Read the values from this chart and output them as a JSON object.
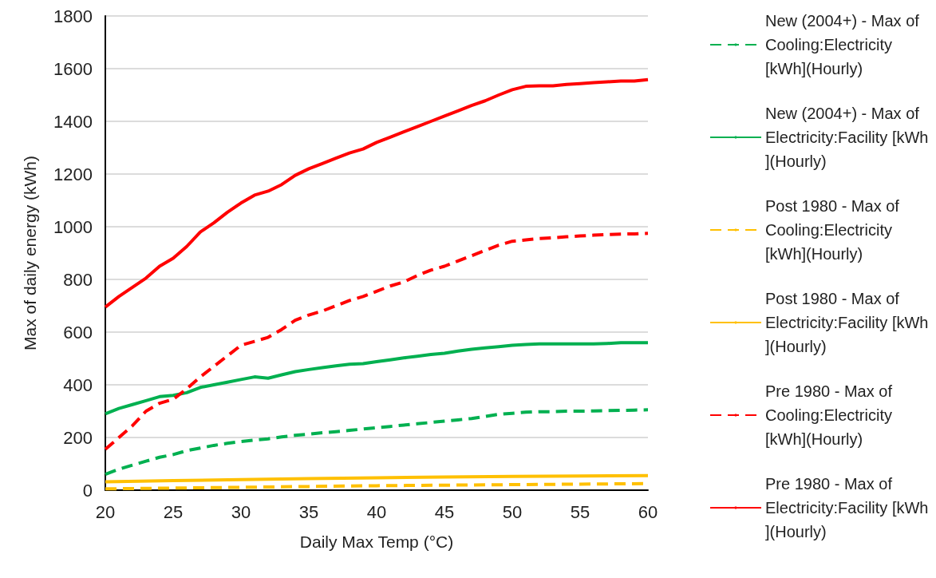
{
  "chart_data": {
    "type": "line",
    "xlabel": "Daily Max Temp (°C)",
    "ylabel": "Max of daily energy (kWh)",
    "x": [
      20,
      21,
      22,
      23,
      24,
      25,
      26,
      27,
      28,
      29,
      30,
      31,
      32,
      33,
      34,
      35,
      36,
      37,
      38,
      39,
      40,
      41,
      42,
      43,
      44,
      45,
      46,
      47,
      48,
      49,
      50,
      51,
      52,
      53,
      54,
      55,
      56,
      57,
      58,
      59,
      60
    ],
    "xlim": [
      20,
      60
    ],
    "xticks": [
      20,
      25,
      30,
      35,
      40,
      45,
      50,
      55,
      60
    ],
    "ylim": [
      0,
      1800
    ],
    "yticks": [
      0,
      200,
      400,
      600,
      800,
      1000,
      1200,
      1400,
      1600,
      1800
    ],
    "grid": "y",
    "legend": "right",
    "marker": "none",
    "series": [
      {
        "name": "New (2004+) - Max of Cooling:Electricity [kWh](Hourly)",
        "color": "#00b050",
        "line_style": "dashed",
        "values": [
          60,
          80,
          95,
          110,
          125,
          135,
          150,
          160,
          170,
          178,
          185,
          190,
          195,
          202,
          208,
          213,
          218,
          222,
          227,
          232,
          237,
          242,
          247,
          252,
          257,
          262,
          267,
          272,
          280,
          288,
          292,
          296,
          298,
          298,
          300,
          300,
          301,
          302,
          303,
          304,
          305
        ]
      },
      {
        "name": "New (2004+) - Max of Electricity:Facility [kWh](Hourly)",
        "color": "#00b050",
        "line_style": "solid",
        "values": [
          290,
          310,
          325,
          340,
          355,
          360,
          370,
          390,
          400,
          410,
          420,
          430,
          425,
          438,
          450,
          458,
          465,
          472,
          478,
          480,
          488,
          495,
          502,
          508,
          515,
          520,
          528,
          535,
          540,
          545,
          550,
          553,
          555,
          555,
          555,
          555,
          555,
          557,
          560,
          560,
          560
        ]
      },
      {
        "name": "Post 1980 - Max of Cooling:Electricity [kWh](Hourly)",
        "color": "#ffc000",
        "line_style": "dashed",
        "x": [
          20,
          25,
          30,
          35,
          40,
          45,
          50,
          55,
          60
        ],
        "values": [
          5,
          8,
          11,
          14,
          17,
          19,
          21,
          23,
          25
        ]
      },
      {
        "name": "Post 1980 - Max of Electricity:Facility [kWh](Hourly)",
        "color": "#ffc000",
        "line_style": "solid",
        "x": [
          20,
          25,
          30,
          35,
          40,
          45,
          50,
          55,
          60
        ],
        "values": [
          32,
          36,
          40,
          44,
          47,
          50,
          52,
          54,
          55
        ]
      },
      {
        "name": "Pre 1980 - Max of Cooling:Electricity [kWh](Hourly)",
        "color": "#ff0000",
        "line_style": "dashed",
        "values": [
          155,
          200,
          245,
          300,
          330,
          345,
          385,
          430,
          470,
          510,
          550,
          565,
          580,
          610,
          645,
          665,
          680,
          700,
          720,
          735,
          755,
          775,
          790,
          815,
          835,
          850,
          870,
          890,
          910,
          930,
          945,
          950,
          955,
          958,
          962,
          965,
          968,
          970,
          972,
          973,
          975
        ]
      },
      {
        "name": "Pre 1980 - Max of Electricity:Facility [kWh](Hourly)",
        "color": "#ff0000",
        "line_style": "solid",
        "values": [
          695,
          735,
          770,
          805,
          850,
          880,
          925,
          980,
          1015,
          1055,
          1090,
          1120,
          1135,
          1160,
          1195,
          1220,
          1240,
          1260,
          1280,
          1295,
          1320,
          1340,
          1360,
          1380,
          1400,
          1420,
          1440,
          1460,
          1478,
          1500,
          1520,
          1533,
          1535,
          1535,
          1540,
          1543,
          1547,
          1550,
          1553,
          1553,
          1558
        ]
      }
    ]
  }
}
